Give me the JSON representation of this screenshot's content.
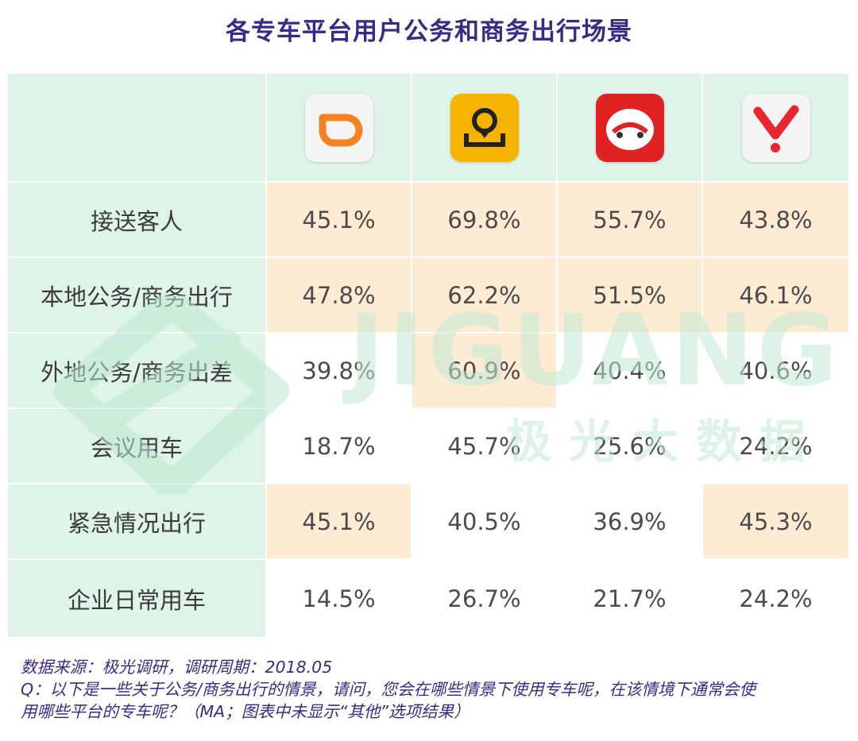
{
  "title": "各专车平台用户公务和商务出行场景",
  "chart_data": {
    "type": "table",
    "columns": [
      {
        "icon": "didi-logo-icon"
      },
      {
        "icon": "shenzhou-logo-icon"
      },
      {
        "icon": "yidao-logo-icon"
      },
      {
        "icon": "caocao-logo-icon"
      }
    ],
    "rows": [
      {
        "label": "接送客人",
        "values": [
          "45.1%",
          "69.8%",
          "55.7%",
          "43.8%"
        ],
        "highlight": [
          true,
          true,
          true,
          true
        ]
      },
      {
        "label": "本地公务/商务出行",
        "values": [
          "47.8%",
          "62.2%",
          "51.5%",
          "46.1%"
        ],
        "highlight": [
          true,
          true,
          true,
          true
        ]
      },
      {
        "label": "外地公务/商务出差",
        "values": [
          "39.8%",
          "60.9%",
          "40.4%",
          "40.6%"
        ],
        "highlight": [
          false,
          true,
          false,
          false
        ]
      },
      {
        "label": "会议用车",
        "values": [
          "18.7%",
          "45.7%",
          "25.6%",
          "24.2%"
        ],
        "highlight": [
          false,
          false,
          false,
          false
        ]
      },
      {
        "label": "紧急情况出行",
        "values": [
          "45.1%",
          "40.5%",
          "36.9%",
          "45.3%"
        ],
        "highlight": [
          true,
          false,
          false,
          true
        ]
      },
      {
        "label": "企业日常用车",
        "values": [
          "14.5%",
          "26.7%",
          "21.7%",
          "24.2%"
        ],
        "highlight": [
          false,
          false,
          false,
          false
        ]
      }
    ]
  },
  "watermark": {
    "latin": "JIGUANG",
    "chinese": "极光大数据"
  },
  "notes": {
    "source": "数据来源：极光调研，调研周期：2018.05",
    "question_line1": "Q：以下是一些关于公务/商务出行的情景，请问，您会在哪些情景下使用专车呢，在该情境下通常会使",
    "question_line2": "用哪些平台的专车呢？（MA；图表中未显示“其他”选项结果）"
  },
  "colors": {
    "title": "#3a2a86",
    "header_bg": "#dff4e8",
    "highlight_bg": "#fdebd3",
    "text": "#4b4b4b",
    "notes": "#3b2a86"
  }
}
